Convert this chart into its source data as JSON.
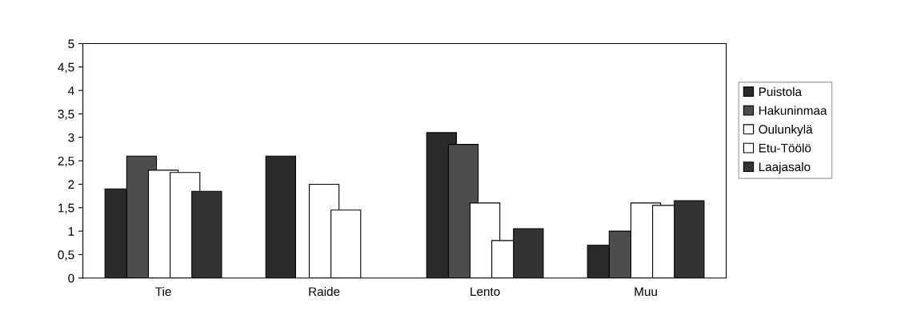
{
  "chart_data": {
    "type": "bar",
    "categories": [
      "Tie",
      "Raide",
      "Lento",
      "Muu"
    ],
    "series": [
      {
        "name": "Puistola",
        "color": "#2a2a2a",
        "values": [
          1.9,
          2.6,
          3.1,
          0.7
        ]
      },
      {
        "name": "Hakuninmaa",
        "color": "#4d4d4d",
        "values": [
          2.6,
          null,
          2.85,
          1.0
        ]
      },
      {
        "name": "Oulunkylä",
        "color": "#ffffff",
        "values": [
          2.3,
          2.0,
          1.6,
          1.6
        ]
      },
      {
        "name": "Etu-Töölö",
        "color": "#ffffff",
        "values": [
          2.25,
          1.45,
          0.8,
          1.55
        ]
      },
      {
        "name": "Laajasalo",
        "color": "#333333",
        "values": [
          1.85,
          null,
          1.05,
          1.65
        ]
      }
    ],
    "ylim": [
      0,
      5
    ],
    "yticks": [
      0,
      {
        "value": 0.5,
        "label": "0,5"
      },
      1,
      {
        "value": 1.5,
        "label": "1,5"
      },
      2,
      {
        "value": 2.5,
        "label": "2,5"
      },
      3,
      {
        "value": 3.5,
        "label": "3,5"
      },
      4,
      {
        "value": 4.5,
        "label": "4,5"
      },
      5
    ],
    "grid": false,
    "legend": "right"
  }
}
